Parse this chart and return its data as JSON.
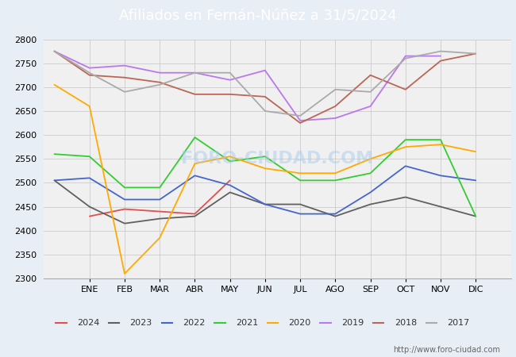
{
  "title": "Afiliados en Fernán-Núñez a 31/5/2024",
  "title_bg": "#5588cc",
  "months": [
    "ENE",
    "FEB",
    "MAR",
    "ABR",
    "MAY",
    "JUN",
    "JUL",
    "AGO",
    "SEP",
    "OCT",
    "NOV",
    "DIC"
  ],
  "ylim": [
    2300,
    2800
  ],
  "yticks": [
    2300,
    2350,
    2400,
    2450,
    2500,
    2550,
    2600,
    2650,
    2700,
    2750,
    2800
  ],
  "watermark": "FORO-CIUDAD.COM",
  "url": "http://www.foro-ciudad.com",
  "series": [
    {
      "year": "2024",
      "color": "#e05050",
      "data": [
        null,
        2430,
        2445,
        2440,
        2435,
        2505,
        null,
        null,
        null,
        null,
        null,
        null,
        null
      ]
    },
    {
      "year": "2023",
      "color": "#606060",
      "data": [
        2505,
        2450,
        2415,
        2425,
        2430,
        2480,
        2455,
        2455,
        2430,
        2455,
        2470,
        2450,
        2430
      ]
    },
    {
      "year": "2022",
      "color": "#4466cc",
      "data": [
        2505,
        2510,
        2465,
        2465,
        2515,
        2495,
        2455,
        2435,
        2435,
        2480,
        2535,
        2515,
        2505
      ]
    },
    {
      "year": "2021",
      "color": "#33cc33",
      "data": [
        2560,
        2555,
        2490,
        2490,
        2595,
        2545,
        2555,
        2505,
        2505,
        2520,
        2590,
        2590,
        2430
      ]
    },
    {
      "year": "2020",
      "color": "#ffaa00",
      "data": [
        2705,
        2660,
        2310,
        2385,
        2540,
        2555,
        2530,
        2520,
        2520,
        2550,
        2575,
        2580,
        2565
      ]
    },
    {
      "year": "2019",
      "color": "#bb77ee",
      "data": [
        2775,
        2740,
        2745,
        2730,
        2730,
        2715,
        2735,
        2630,
        2635,
        2660,
        2765,
        2765,
        null
      ]
    },
    {
      "year": "2018",
      "color": "#bb6655",
      "data": [
        2775,
        2725,
        2720,
        2710,
        2685,
        2685,
        2680,
        2625,
        2660,
        2725,
        2695,
        2755,
        2770
      ]
    },
    {
      "year": "2017",
      "color": "#aaaaaa",
      "data": [
        2775,
        2730,
        2690,
        2705,
        2730,
        2730,
        2650,
        2640,
        2695,
        2690,
        2760,
        2775,
        2770
      ]
    }
  ],
  "background_color": "#e8eef5",
  "plot_bg": "#f0f0f0",
  "grid_color": "#cccccc"
}
